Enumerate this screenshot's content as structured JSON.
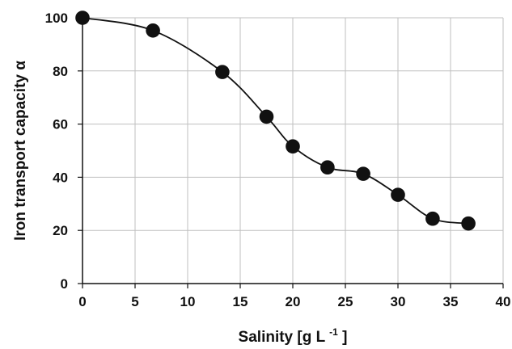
{
  "chart_data": {
    "type": "line",
    "xlabel": "Salinity [g L",
    "xlabel_sup": "-1",
    "xlabel_suffix": "]",
    "ylabel": "Iron transport capacity α",
    "xlim": [
      0,
      40
    ],
    "ylim": [
      0,
      100
    ],
    "x_ticks": [
      0,
      5,
      10,
      15,
      20,
      25,
      30,
      35,
      40
    ],
    "y_ticks": [
      0,
      20,
      40,
      60,
      80,
      100
    ],
    "grid": true,
    "legend": "none",
    "marker": "circle",
    "smooth_curve": true,
    "series": [
      {
        "x": [
          0,
          6.7,
          13.3,
          17.5,
          20,
          23.3,
          26.7,
          30,
          33.3,
          36.7
        ],
        "y": [
          100,
          95.2,
          79.6,
          62.8,
          51.6,
          43.7,
          41.3,
          33.4,
          24.4,
          22.6
        ]
      }
    ],
    "colors": {
      "marker": "#111111",
      "curve": "#111111",
      "grid": "#bfbfbf",
      "axis": "#111111"
    }
  }
}
